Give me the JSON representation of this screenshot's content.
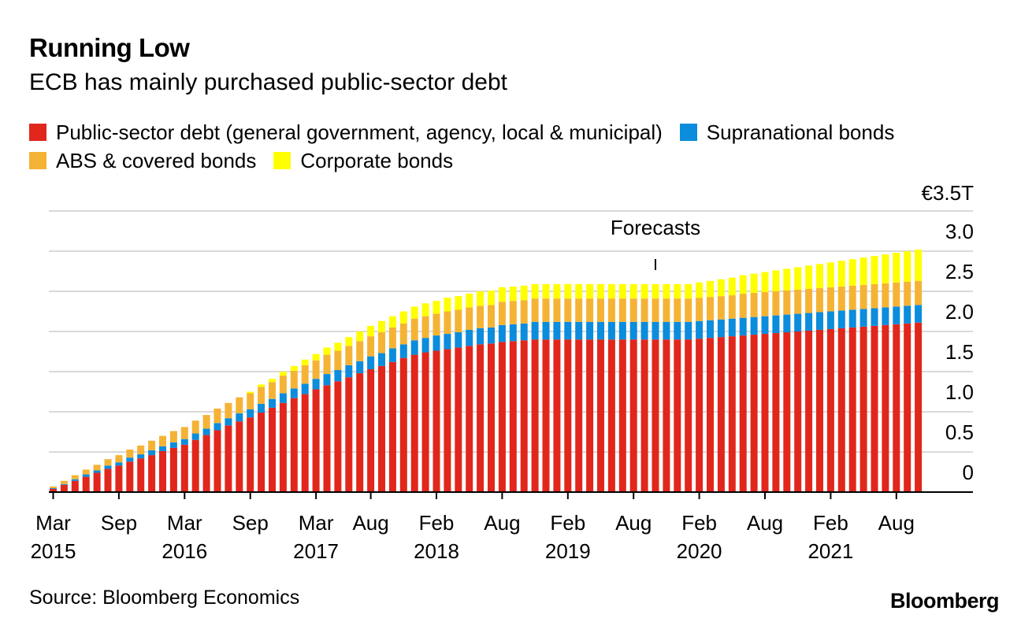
{
  "header": {
    "title": "Running Low",
    "subtitle": "ECB has mainly purchased public-sector debt"
  },
  "legend": {
    "items": [
      {
        "label": "Public-sector debt (general government, agency, local & municipal)",
        "color": "#e1261c"
      },
      {
        "label": "Supranational bonds",
        "color": "#0b8cdc"
      },
      {
        "label": "ABS & covered bonds",
        "color": "#f5b335"
      },
      {
        "label": "Corporate bonds",
        "color": "#ffff00"
      }
    ]
  },
  "chart_data": {
    "type": "bar",
    "stacked": true,
    "categories": [
      "Mar 2015",
      "Apr 2015",
      "May 2015",
      "Jun 2015",
      "Jul 2015",
      "Aug 2015",
      "Sep 2015",
      "Oct 2015",
      "Nov 2015",
      "Dec 2015",
      "Jan 2016",
      "Feb 2016",
      "Mar 2016",
      "Apr 2016",
      "May 2016",
      "Jun 2016",
      "Jul 2016",
      "Aug 2016",
      "Sep 2016",
      "Oct 2016",
      "Nov 2016",
      "Dec 2016",
      "Jan 2017",
      "Feb 2017",
      "Mar 2017",
      "Apr 2017",
      "May 2017",
      "Jun 2017",
      "Jul 2017",
      "Aug 2017",
      "Sep 2017",
      "Oct 2017",
      "Nov 2017",
      "Dec 2017",
      "Jan 2018",
      "Feb 2018",
      "Mar 2018",
      "Apr 2018",
      "May 2018",
      "Jun 2018",
      "Jul 2018",
      "Aug 2018",
      "Sep 2018",
      "Oct 2018",
      "Nov 2018",
      "Dec 2018",
      "Jan 2019",
      "Feb 2019",
      "Mar 2019",
      "Apr 2019",
      "May 2019",
      "Jun 2019",
      "Jul 2019",
      "Aug 2019",
      "Sep 2019",
      "Oct 2019",
      "Nov 2019",
      "Dec 2019",
      "Jan 2020",
      "Feb 2020",
      "Mar 2020",
      "Apr 2020",
      "May 2020",
      "Jun 2020",
      "Jul 2020",
      "Aug 2020",
      "Sep 2020",
      "Oct 2020",
      "Nov 2020",
      "Dec 2020",
      "Jan 2021",
      "Feb 2021",
      "Mar 2021",
      "Apr 2021",
      "May 2021",
      "Jun 2021",
      "Jul 2021",
      "Aug 2021",
      "Sep 2021",
      "Oct 2021"
    ],
    "series": [
      {
        "name": "Public-sector debt (general government, agency, local & municipal)",
        "color": "#e1261c",
        "values": [
          0.04,
          0.09,
          0.14,
          0.19,
          0.24,
          0.29,
          0.33,
          0.38,
          0.42,
          0.46,
          0.51,
          0.55,
          0.59,
          0.65,
          0.71,
          0.77,
          0.83,
          0.88,
          0.93,
          0.99,
          1.05,
          1.11,
          1.17,
          1.22,
          1.28,
          1.33,
          1.38,
          1.43,
          1.48,
          1.53,
          1.57,
          1.62,
          1.67,
          1.71,
          1.74,
          1.76,
          1.78,
          1.8,
          1.82,
          1.84,
          1.85,
          1.87,
          1.88,
          1.89,
          1.9,
          1.9,
          1.9,
          1.9,
          1.9,
          1.9,
          1.9,
          1.9,
          1.9,
          1.9,
          1.9,
          1.9,
          1.9,
          1.9,
          1.9,
          1.91,
          1.92,
          1.93,
          1.94,
          1.95,
          1.96,
          1.97,
          1.98,
          1.99,
          2.0,
          2.01,
          2.02,
          2.03,
          2.04,
          2.05,
          2.06,
          2.07,
          2.08,
          2.09,
          2.1,
          2.11
        ]
      },
      {
        "name": "Supranational bonds",
        "color": "#0b8cdc",
        "values": [
          0.01,
          0.01,
          0.02,
          0.03,
          0.03,
          0.04,
          0.04,
          0.05,
          0.05,
          0.06,
          0.06,
          0.07,
          0.07,
          0.08,
          0.08,
          0.09,
          0.09,
          0.1,
          0.1,
          0.11,
          0.11,
          0.12,
          0.12,
          0.13,
          0.13,
          0.14,
          0.14,
          0.15,
          0.15,
          0.16,
          0.16,
          0.17,
          0.17,
          0.18,
          0.18,
          0.19,
          0.19,
          0.19,
          0.2,
          0.2,
          0.2,
          0.21,
          0.21,
          0.21,
          0.22,
          0.22,
          0.22,
          0.22,
          0.22,
          0.22,
          0.22,
          0.22,
          0.22,
          0.22,
          0.22,
          0.22,
          0.22,
          0.22,
          0.22,
          0.22,
          0.22,
          0.22,
          0.22,
          0.22,
          0.22,
          0.22,
          0.22,
          0.22,
          0.22,
          0.22,
          0.22,
          0.22,
          0.22,
          0.22,
          0.22,
          0.22,
          0.22,
          0.22,
          0.22,
          0.22
        ]
      },
      {
        "name": "ABS & covered bonds",
        "color": "#f5b335",
        "values": [
          0.02,
          0.04,
          0.05,
          0.06,
          0.07,
          0.08,
          0.09,
          0.1,
          0.11,
          0.12,
          0.13,
          0.14,
          0.15,
          0.16,
          0.17,
          0.18,
          0.19,
          0.2,
          0.2,
          0.21,
          0.21,
          0.22,
          0.22,
          0.23,
          0.23,
          0.24,
          0.24,
          0.24,
          0.25,
          0.25,
          0.26,
          0.26,
          0.26,
          0.27,
          0.27,
          0.27,
          0.28,
          0.28,
          0.28,
          0.28,
          0.28,
          0.29,
          0.29,
          0.29,
          0.29,
          0.29,
          0.29,
          0.29,
          0.29,
          0.29,
          0.29,
          0.29,
          0.29,
          0.29,
          0.29,
          0.29,
          0.29,
          0.29,
          0.29,
          0.29,
          0.29,
          0.29,
          0.29,
          0.3,
          0.3,
          0.3,
          0.3,
          0.3,
          0.3,
          0.3,
          0.3,
          0.3,
          0.3,
          0.3,
          0.3,
          0.3,
          0.3,
          0.3,
          0.3,
          0.3
        ]
      },
      {
        "name": "Corporate bonds",
        "color": "#ffff00",
        "values": [
          0,
          0,
          0,
          0,
          0,
          0,
          0,
          0,
          0,
          0,
          0,
          0,
          0,
          0,
          0,
          0,
          0,
          0,
          0.02,
          0.03,
          0.04,
          0.05,
          0.06,
          0.07,
          0.08,
          0.09,
          0.1,
          0.11,
          0.12,
          0.13,
          0.14,
          0.14,
          0.15,
          0.15,
          0.16,
          0.16,
          0.17,
          0.17,
          0.17,
          0.18,
          0.18,
          0.18,
          0.18,
          0.18,
          0.18,
          0.18,
          0.18,
          0.18,
          0.18,
          0.18,
          0.18,
          0.18,
          0.18,
          0.18,
          0.18,
          0.18,
          0.18,
          0.18,
          0.18,
          0.19,
          0.2,
          0.21,
          0.22,
          0.23,
          0.24,
          0.25,
          0.26,
          0.27,
          0.28,
          0.29,
          0.3,
          0.31,
          0.32,
          0.33,
          0.34,
          0.35,
          0.36,
          0.37,
          0.38,
          0.39
        ]
      }
    ],
    "ylim": [
      0,
      3.5
    ],
    "yticks": [
      0,
      0.5,
      1.0,
      1.5,
      2.0,
      2.5,
      3.0,
      3.5
    ],
    "ytick_labels": [
      "0",
      "0.5",
      "1.0",
      "1.5",
      "2.0",
      "2.5",
      "3.0",
      "€3.5T"
    ],
    "xtick_labels": [
      {
        "index": 0,
        "month": "Mar",
        "year": "2015"
      },
      {
        "index": 6,
        "month": "Sep",
        "year": ""
      },
      {
        "index": 12,
        "month": "Mar",
        "year": "2016"
      },
      {
        "index": 18,
        "month": "Sep",
        "year": ""
      },
      {
        "index": 24,
        "month": "Mar",
        "year": "2017"
      },
      {
        "index": 29,
        "month": "Aug",
        "year": ""
      },
      {
        "index": 35,
        "month": "Feb",
        "year": "2018"
      },
      {
        "index": 41,
        "month": "Aug",
        "year": ""
      },
      {
        "index": 47,
        "month": "Feb",
        "year": "2019"
      },
      {
        "index": 53,
        "month": "Aug",
        "year": ""
      },
      {
        "index": 59,
        "month": "Feb",
        "year": "2020"
      },
      {
        "index": 65,
        "month": "Aug",
        "year": ""
      },
      {
        "index": 71,
        "month": "Feb",
        "year": "2021"
      },
      {
        "index": 77,
        "month": "Aug",
        "year": ""
      }
    ],
    "annotation": {
      "text": "Forecasts",
      "index": 55
    },
    "grid": true,
    "legend_position": "top"
  },
  "footer": {
    "source": "Source: Bloomberg Economics",
    "brand": "Bloomberg"
  }
}
